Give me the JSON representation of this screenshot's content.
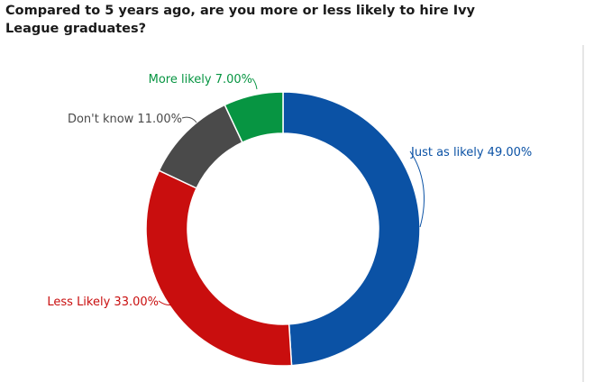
{
  "chart_data": {
    "type": "pie",
    "variant": "donut",
    "title": "Compared to 5 years ago, are you more or less likely to hire Ivy League graduates?",
    "unit": "%",
    "slices": [
      {
        "label": "Just as likely",
        "value": 49.0,
        "value_text": "49.00%",
        "color": "#0b52a5"
      },
      {
        "label": "Less Likely",
        "value": 33.0,
        "value_text": "33.00%",
        "color": "#c90e0e"
      },
      {
        "label": "Don't know",
        "value": 11.0,
        "value_text": "11.00%",
        "color": "#4a4a4a"
      },
      {
        "label": "More likely",
        "value": 7.0,
        "value_text": "7.00%",
        "color": "#079542"
      }
    ],
    "legend": "none"
  }
}
